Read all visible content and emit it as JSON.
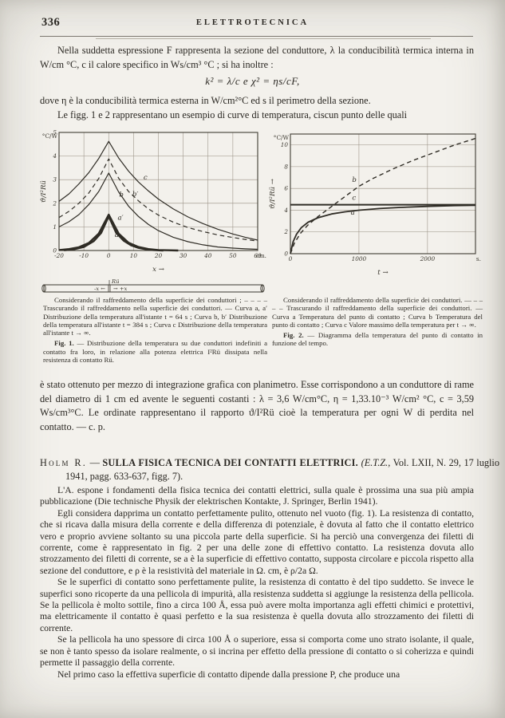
{
  "header": {
    "page_number": "336",
    "journal_title": "ELETTROTECNICA"
  },
  "intro": {
    "paragraph_1": "Nella suddetta espressione F rappresenta la sezione del conduttore, λ la conducibilità termica interna in W/cm °C, c il calore specifico in Ws/cm³ °C ; si ha inoltre :",
    "formula": "k² = λ/c   e   χ² = ηs/cF,",
    "paragraph_2": "dove η è la conducibilità termica esterna in W/cm²°C ed s il perimetro della sezione.",
    "paragraph_3": "Le figg. 1 e 2 rappresentano un esempio di curve di temperatura, ciscun punto delle quali"
  },
  "chart_data": [
    {
      "id": "fig1",
      "type": "line",
      "title": "Fig. 1 — Distribuzione della temperatura su due conduttori a contatto",
      "xlabel": "x →",
      "x_unit": "cm.",
      "ylabel": "ϑ/I²Rü",
      "y_unit": "°C/W",
      "xlim": [
        -20,
        60
      ],
      "ylim": [
        0,
        5
      ],
      "xticks": [
        -20,
        -10,
        0,
        10,
        20,
        30,
        40,
        50,
        60
      ],
      "yticks": [
        0,
        1,
        2,
        3,
        4,
        5
      ],
      "grid": true,
      "legend_position": "caption",
      "series": [
        {
          "name": "c",
          "style": "solid",
          "width": 1.2,
          "label_at": [
            14,
            3.0
          ],
          "points": [
            [
              -20,
              2.08
            ],
            [
              -16,
              2.4
            ],
            [
              -12,
              2.82
            ],
            [
              -8,
              3.3
            ],
            [
              -4,
              3.9
            ],
            [
              0,
              4.62
            ],
            [
              4,
              3.92
            ],
            [
              8,
              3.36
            ],
            [
              12,
              2.9
            ],
            [
              16,
              2.52
            ],
            [
              20,
              2.18
            ],
            [
              26,
              1.76
            ],
            [
              32,
              1.42
            ],
            [
              38,
              1.14
            ],
            [
              44,
              0.9
            ],
            [
              50,
              0.7
            ],
            [
              55,
              0.56
            ],
            [
              60,
              0.44
            ]
          ]
        },
        {
          "name": "b′",
          "style": "dashed",
          "width": 1.2,
          "label_at": [
            9.5,
            2.3
          ],
          "points": [
            [
              -20,
              1.4
            ],
            [
              -16,
              1.66
            ],
            [
              -12,
              2.0
            ],
            [
              -8,
              2.44
            ],
            [
              -4,
              3.05
            ],
            [
              0,
              3.88
            ],
            [
              4,
              3.06
            ],
            [
              8,
              2.5
            ],
            [
              12,
              2.1
            ],
            [
              16,
              1.76
            ],
            [
              20,
              1.5
            ],
            [
              26,
              1.2
            ],
            [
              32,
              0.97
            ],
            [
              38,
              0.8
            ],
            [
              44,
              0.66
            ],
            [
              50,
              0.55
            ],
            [
              55,
              0.47
            ],
            [
              60,
              0.4
            ]
          ]
        },
        {
          "name": "b",
          "style": "solid",
          "width": 1.2,
          "label_at": [
            4.2,
            2.28
          ],
          "points": [
            [
              -20,
              1.0
            ],
            [
              -16,
              1.22
            ],
            [
              -12,
              1.52
            ],
            [
              -8,
              1.95
            ],
            [
              -4,
              2.5
            ],
            [
              0,
              3.28
            ],
            [
              4,
              2.48
            ],
            [
              8,
              1.88
            ],
            [
              12,
              1.44
            ],
            [
              16,
              1.1
            ],
            [
              20,
              0.84
            ],
            [
              26,
              0.56
            ],
            [
              32,
              0.37
            ],
            [
              38,
              0.24
            ],
            [
              44,
              0.15
            ],
            [
              50,
              0.1
            ],
            [
              55,
              0.07
            ],
            [
              60,
              0.05
            ]
          ]
        },
        {
          "name": "a′",
          "style": "solid",
          "width": 2.4,
          "label_at": [
            3.6,
            1.3
          ],
          "points": [
            [
              -20,
              0.02
            ],
            [
              -16,
              0.06
            ],
            [
              -12,
              0.14
            ],
            [
              -8,
              0.32
            ],
            [
              -4,
              0.72
            ],
            [
              0,
              1.52
            ],
            [
              4,
              0.72
            ],
            [
              8,
              0.33
            ],
            [
              12,
              0.15
            ],
            [
              16,
              0.06
            ],
            [
              20,
              0.02
            ],
            [
              24,
              0.01
            ],
            [
              28,
              0
            ]
          ]
        },
        {
          "name": "a",
          "style": "solid",
          "width": 2.4,
          "label_at": [
            2.4,
            0.58
          ],
          "points": [
            [
              -18,
              0.01
            ],
            [
              -14,
              0.05
            ],
            [
              -10,
              0.15
            ],
            [
              -6,
              0.4
            ],
            [
              -3,
              0.75
            ],
            [
              0,
              1.45
            ],
            [
              3,
              0.75
            ],
            [
              6,
              0.42
            ],
            [
              9,
              0.22
            ],
            [
              12,
              0.11
            ],
            [
              15,
              0.05
            ],
            [
              18,
              0.02
            ],
            [
              22,
              0
            ]
          ]
        }
      ]
    },
    {
      "id": "fig2",
      "type": "line",
      "title": "Fig. 2 — Temperatura del punto di contatto in funzione del tempo",
      "xlabel": "t →",
      "x_unit": "s.",
      "ylabel": "ϑ/I²Rü →",
      "y_unit": "°C/W",
      "xlim": [
        0,
        2700
      ],
      "ylim": [
        0,
        11
      ],
      "xticks": [
        0,
        1000,
        2000
      ],
      "yticks": [
        0,
        2,
        4,
        6,
        8,
        10
      ],
      "grid": true,
      "legend_position": "caption",
      "series": [
        {
          "name": "b",
          "style": "dashed",
          "width": 1.4,
          "label_at": [
            900,
            6.6
          ],
          "points": [
            [
              0,
              0
            ],
            [
              60,
              1.0
            ],
            [
              150,
              1.9
            ],
            [
              250,
              2.6
            ],
            [
              400,
              3.4
            ],
            [
              550,
              4.1
            ],
            [
              700,
              4.8
            ],
            [
              850,
              5.5
            ],
            [
              1000,
              6.2
            ],
            [
              1200,
              6.9
            ],
            [
              1500,
              7.8
            ],
            [
              1800,
              8.6
            ],
            [
              2100,
              9.3
            ],
            [
              2400,
              10.0
            ],
            [
              2700,
              10.6
            ]
          ]
        },
        {
          "name": "c",
          "style": "solid",
          "width": 2.0,
          "label_at": [
            900,
            4.95
          ],
          "points": [
            [
              0,
              4.5
            ],
            [
              2700,
              4.5
            ]
          ]
        },
        {
          "name": "a",
          "style": "solid",
          "width": 1.8,
          "label_at": [
            880,
            3.6
          ],
          "points": [
            [
              0,
              0
            ],
            [
              40,
              1.1
            ],
            [
              90,
              1.8
            ],
            [
              160,
              2.4
            ],
            [
              260,
              2.9
            ],
            [
              400,
              3.3
            ],
            [
              600,
              3.65
            ],
            [
              800,
              3.85
            ],
            [
              1000,
              4.0
            ],
            [
              1300,
              4.15
            ],
            [
              1600,
              4.25
            ],
            [
              2000,
              4.35
            ],
            [
              2400,
              4.42
            ],
            [
              2700,
              4.45
            ]
          ]
        }
      ]
    }
  ],
  "fig1": {
    "conductor": {
      "r_label": "Rü",
      "left_label": "-x ←",
      "right_label": "→ +x"
    },
    "caption_legend": "Considerando il raffreddamento della superficie dei conduttori ; – – – – Trascurando il raffreddamento nella superficie dei conduttori. — Curva a, a′ Distribuzione della temperatura all'istante t = 64 s ; Curva b, b′ Distribuzione della temperatura all'istante t = 384 s ; Curva c Distribuzione della temperatura all'istante t → ∞.",
    "caption_number": "Fig. 1.",
    "caption_text": " — Distribuzione della temperatura su due conduttori indefiniti a contatto fra loro, in relazione alla potenza elettrica I²Rü dissipata nella resistenza di contatto Rü."
  },
  "fig2": {
    "caption_legend": "Considerando il raffreddamento della superficie dei conduttori. — – – – – Trascurando il raffreddamento della superficie dei conduttori. — Curva a Temperatura del punto di contatto ; Curva b Temperatura del punto di contatto ; Curva c Valore massimo della temperatura per t → ∞.",
    "caption_number": "Fig. 2.",
    "caption_text": " — Diagramma della temperatura del punto di contatto in funzione del tempo."
  },
  "after_figures": "è stato ottenuto per mezzo di integrazione grafica con planimetro. Esse corrispondono a un conduttore di rame del diametro di 1 cm ed avente le seguenti costanti : λ = 3,6 W/cm°C, η = 1,33.10⁻³ W/cm² °C, c = 3,59 Ws/cm³°C. Le ordinate rappresentano il rapporto ϑ/I²Rü cioè la temperatura per ogni W di perdita nel contatto. — c. p.",
  "review": {
    "author": "Holm R.",
    "separator": " — ",
    "title": "SULLA FISICA TECNICA DEI CONTATTI ELETTRICI. ",
    "reference_italic": "(E.T.Z.,",
    "reference_rest": " Vol. LXII, N. 29, 17 luglio 1941, pagg. 633-637, figg. 7).",
    "paragraphs": [
      "L'A. espone i fondamenti della fisica tecnica dei contatti elettrici, sulla quale è prossima una sua più ampia pubblicazione (Die technische Physik der elektrischen Kontakte, J. Springer, Berlin 1941).",
      "Egli considera dapprima un contatto perfettamente pulito, ottenuto nel vuoto (fig. 1). La resistenza di contatto, che si ricava dalla misura della corrente e della differenza di potenziale, è dovuta al fatto che il contatto elettrico vero e proprio avviene soltanto su una piccola parte della superficie. Si ha perciò una convergenza dei filetti di corrente, come è rappresentato in fig. 2 per una delle zone di effettivo contatto. La resistenza dovuta allo strozzamento dei filetti di corrente, se a è la superficie di effettivo contatto, supposta circolare e piccola rispetto alla sezione del conduttore, e ρ è la resistività del materiale in Ω. cm, è ρ/2a Ω.",
      "Se le superfici di contatto sono perfettamente pulite, la resistenza di contatto è del tipo suddetto. Se invece le superfici sono ricoperte da una pellicola di impurità, alla resistenza suddetta si aggiunge la resistenza della pellicola. Se la pellicola è molto sottile, fino a circa 100 Å, essa può avere molta importanza agli effetti chimici e protettivi, ma elettricamente il contatto è quasi perfetto e la sua resistenza è quella dovuta allo strozzamento dei filetti di corrente.",
      "Se la pellicola ha uno spessore di circa 100 Å o superiore, essa si comporta come uno strato isolante, il quale, se non è tanto spesso da isolare realmente, o si incrina per effetto della pressione di contatto o si coherizza e quindi permette il passaggio della corrente.",
      "Nel primo caso la effettiva superficie di contatto dipende dalla pressione P, che produce una"
    ]
  }
}
